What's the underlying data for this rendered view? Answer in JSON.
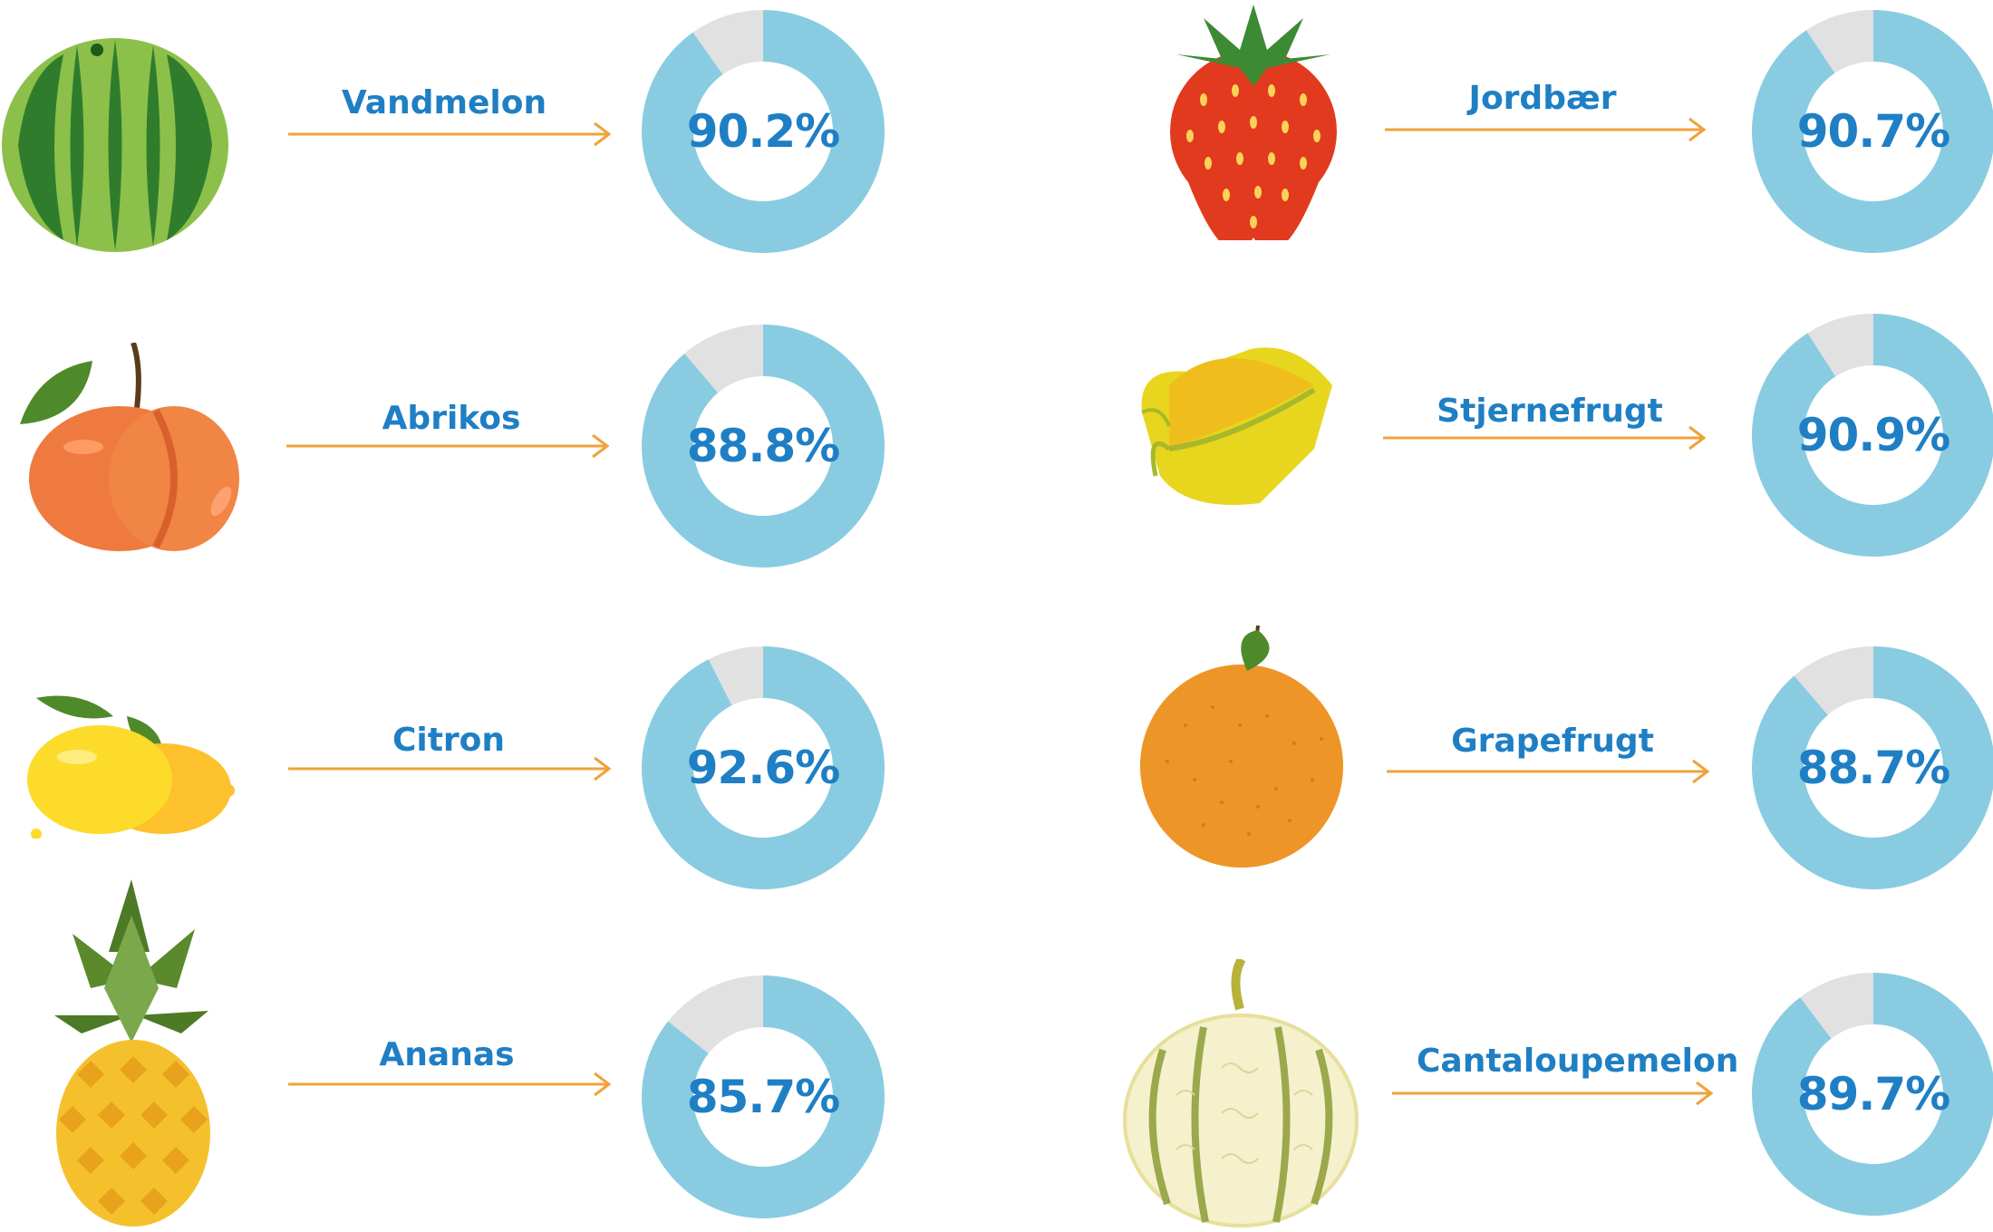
{
  "chart_data": {
    "type": "donut",
    "unit": "%",
    "items": [
      {
        "name": "Vandmelon",
        "value": 90.2,
        "label": "90.2%"
      },
      {
        "name": "Abrikos",
        "value": 88.8,
        "label": "88.8%"
      },
      {
        "name": "Citron",
        "value": 92.6,
        "label": "92.6%"
      },
      {
        "name": "Ananas",
        "value": 85.7,
        "label": "85.7%"
      },
      {
        "name": "Jordbær",
        "value": 90.7,
        "label": "90.7%"
      },
      {
        "name": "Stjernefrugt",
        "value": 90.9,
        "label": "90.9%"
      },
      {
        "name": "Grapefrugt",
        "value": 88.7,
        "label": "88.7%"
      },
      {
        "name": "Cantaloupemelon",
        "value": 89.7,
        "label": "89.7%"
      }
    ]
  },
  "colors": {
    "filled": "#89cce1",
    "remainder": "#e1e1e1",
    "text": "#1f7fc4",
    "arrow": "#f0a23a"
  },
  "icons": [
    "watermelon-icon",
    "apricot-icon",
    "lemon-icon",
    "pineapple-icon",
    "strawberry-icon",
    "starfruit-icon",
    "grapefruit-icon",
    "cantaloupe-icon"
  ]
}
